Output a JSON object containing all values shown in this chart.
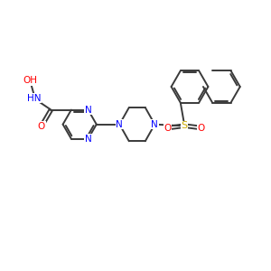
{
  "bg_color": "#FFFFFF",
  "bond_color": "#3a3a3a",
  "N_color": "#0000FF",
  "O_color": "#FF0000",
  "S_color": "#CCAA00",
  "lw": 1.4,
  "fs": 7.5,
  "figsize": [
    3.0,
    3.0
  ],
  "dpi": 100,
  "xlim": [
    0,
    10
  ],
  "ylim": [
    0,
    10
  ]
}
